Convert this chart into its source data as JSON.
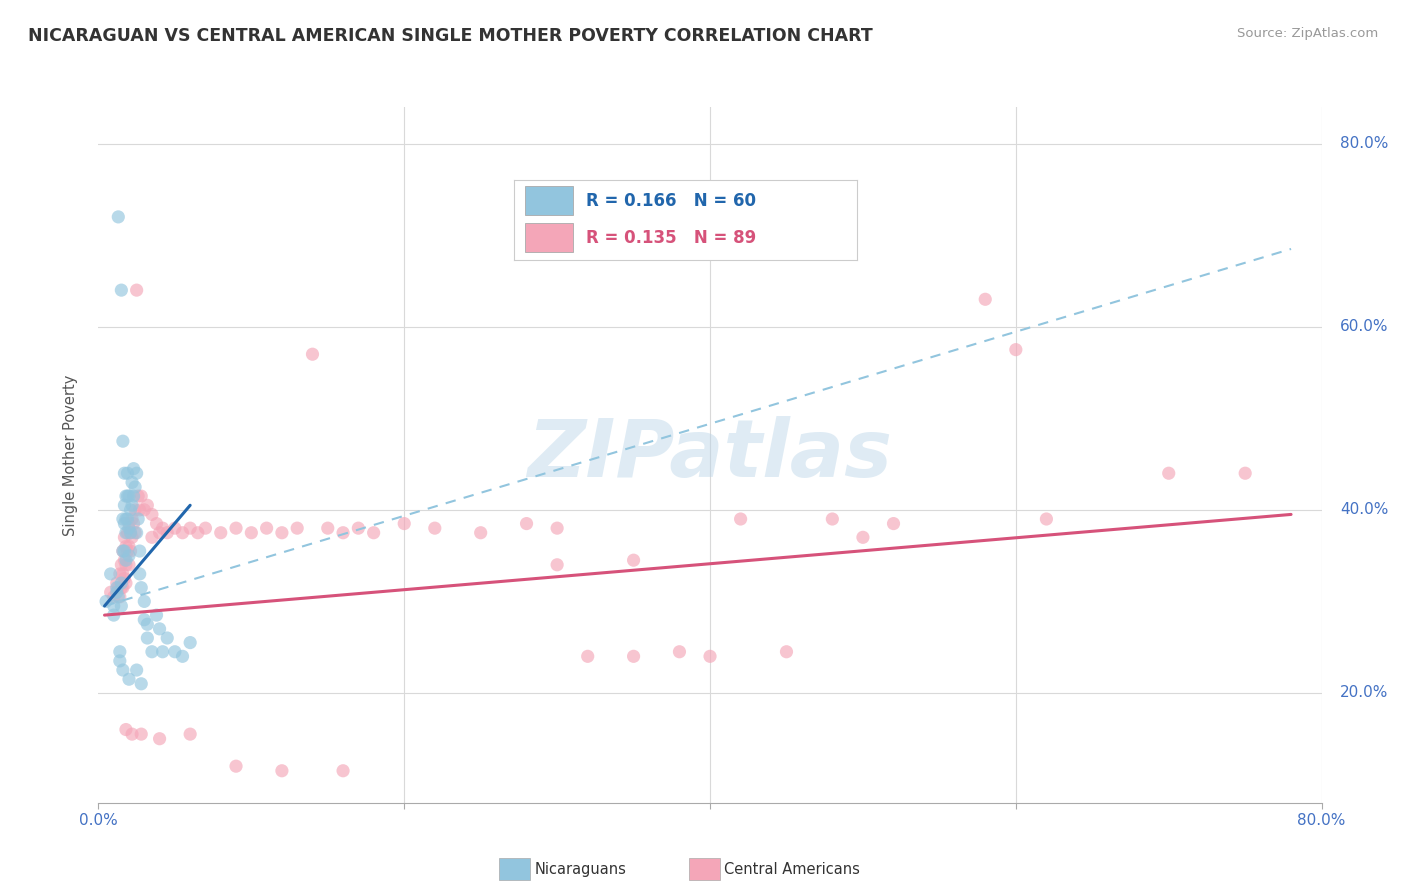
{
  "title": "NICARAGUAN VS CENTRAL AMERICAN SINGLE MOTHER POVERTY CORRELATION CHART",
  "source": "Source: ZipAtlas.com",
  "ylabel": "Single Mother Poverty",
  "watermark": "ZIPatlas",
  "xlim": [
    0.0,
    0.8
  ],
  "ylim": [
    0.08,
    0.84
  ],
  "xtick_positions": [
    0.0,
    0.2,
    0.4,
    0.6,
    0.8
  ],
  "xticklabels": [
    "0.0%",
    "",
    "",
    "",
    "80.0%"
  ],
  "ytick_positions": [
    0.2,
    0.4,
    0.6,
    0.8
  ],
  "yticklabels_right": [
    "20.0%",
    "40.0%",
    "60.0%",
    "80.0%"
  ],
  "blue_color": "#92c5de",
  "pink_color": "#f4a6b8",
  "blue_line_color": "#2166ac",
  "pink_line_color": "#d6527a",
  "dashed_line_color": "#92c5de",
  "grid_color": "#d9d9d9",
  "title_color": "#333333",
  "axis_tick_color": "#4472c4",
  "scatter_alpha": 0.65,
  "scatter_size": 90,
  "blue_scatter": [
    [
      0.005,
      0.3
    ],
    [
      0.008,
      0.33
    ],
    [
      0.01,
      0.295
    ],
    [
      0.01,
      0.285
    ],
    [
      0.012,
      0.315
    ],
    [
      0.012,
      0.31
    ],
    [
      0.013,
      0.72
    ],
    [
      0.013,
      0.305
    ],
    [
      0.015,
      0.32
    ],
    [
      0.015,
      0.64
    ],
    [
      0.015,
      0.295
    ],
    [
      0.016,
      0.475
    ],
    [
      0.016,
      0.39
    ],
    [
      0.016,
      0.355
    ],
    [
      0.017,
      0.44
    ],
    [
      0.017,
      0.405
    ],
    [
      0.017,
      0.385
    ],
    [
      0.017,
      0.355
    ],
    [
      0.018,
      0.415
    ],
    [
      0.018,
      0.39
    ],
    [
      0.018,
      0.375
    ],
    [
      0.018,
      0.345
    ],
    [
      0.019,
      0.44
    ],
    [
      0.019,
      0.415
    ],
    [
      0.019,
      0.39
    ],
    [
      0.02,
      0.415
    ],
    [
      0.02,
      0.38
    ],
    [
      0.02,
      0.35
    ],
    [
      0.021,
      0.4
    ],
    [
      0.021,
      0.375
    ],
    [
      0.022,
      0.43
    ],
    [
      0.022,
      0.405
    ],
    [
      0.023,
      0.445
    ],
    [
      0.023,
      0.415
    ],
    [
      0.024,
      0.425
    ],
    [
      0.025,
      0.44
    ],
    [
      0.025,
      0.375
    ],
    [
      0.026,
      0.39
    ],
    [
      0.027,
      0.355
    ],
    [
      0.027,
      0.33
    ],
    [
      0.028,
      0.315
    ],
    [
      0.03,
      0.3
    ],
    [
      0.03,
      0.28
    ],
    [
      0.032,
      0.275
    ],
    [
      0.032,
      0.26
    ],
    [
      0.035,
      0.245
    ],
    [
      0.038,
      0.285
    ],
    [
      0.04,
      0.27
    ],
    [
      0.042,
      0.245
    ],
    [
      0.045,
      0.26
    ],
    [
      0.05,
      0.245
    ],
    [
      0.055,
      0.24
    ],
    [
      0.06,
      0.255
    ],
    [
      0.014,
      0.245
    ],
    [
      0.014,
      0.235
    ],
    [
      0.016,
      0.225
    ],
    [
      0.02,
      0.215
    ],
    [
      0.025,
      0.225
    ],
    [
      0.028,
      0.21
    ]
  ],
  "pink_scatter": [
    [
      0.008,
      0.31
    ],
    [
      0.01,
      0.305
    ],
    [
      0.012,
      0.32
    ],
    [
      0.013,
      0.315
    ],
    [
      0.014,
      0.33
    ],
    [
      0.014,
      0.305
    ],
    [
      0.015,
      0.34
    ],
    [
      0.015,
      0.315
    ],
    [
      0.016,
      0.355
    ],
    [
      0.016,
      0.33
    ],
    [
      0.016,
      0.315
    ],
    [
      0.017,
      0.37
    ],
    [
      0.017,
      0.345
    ],
    [
      0.017,
      0.325
    ],
    [
      0.018,
      0.36
    ],
    [
      0.018,
      0.34
    ],
    [
      0.018,
      0.32
    ],
    [
      0.019,
      0.375
    ],
    [
      0.019,
      0.355
    ],
    [
      0.02,
      0.385
    ],
    [
      0.02,
      0.36
    ],
    [
      0.02,
      0.34
    ],
    [
      0.021,
      0.375
    ],
    [
      0.021,
      0.355
    ],
    [
      0.022,
      0.39
    ],
    [
      0.022,
      0.37
    ],
    [
      0.023,
      0.385
    ],
    [
      0.024,
      0.4
    ],
    [
      0.024,
      0.375
    ],
    [
      0.025,
      0.64
    ],
    [
      0.026,
      0.415
    ],
    [
      0.027,
      0.4
    ],
    [
      0.028,
      0.415
    ],
    [
      0.03,
      0.4
    ],
    [
      0.032,
      0.405
    ],
    [
      0.035,
      0.395
    ],
    [
      0.035,
      0.37
    ],
    [
      0.038,
      0.385
    ],
    [
      0.04,
      0.375
    ],
    [
      0.042,
      0.38
    ],
    [
      0.045,
      0.375
    ],
    [
      0.05,
      0.38
    ],
    [
      0.055,
      0.375
    ],
    [
      0.06,
      0.38
    ],
    [
      0.065,
      0.375
    ],
    [
      0.07,
      0.38
    ],
    [
      0.08,
      0.375
    ],
    [
      0.09,
      0.38
    ],
    [
      0.1,
      0.375
    ],
    [
      0.11,
      0.38
    ],
    [
      0.12,
      0.375
    ],
    [
      0.13,
      0.38
    ],
    [
      0.14,
      0.57
    ],
    [
      0.15,
      0.38
    ],
    [
      0.16,
      0.375
    ],
    [
      0.17,
      0.38
    ],
    [
      0.18,
      0.375
    ],
    [
      0.2,
      0.385
    ],
    [
      0.22,
      0.38
    ],
    [
      0.25,
      0.375
    ],
    [
      0.28,
      0.385
    ],
    [
      0.3,
      0.38
    ],
    [
      0.32,
      0.24
    ],
    [
      0.35,
      0.24
    ],
    [
      0.38,
      0.245
    ],
    [
      0.4,
      0.24
    ],
    [
      0.42,
      0.39
    ],
    [
      0.45,
      0.245
    ],
    [
      0.48,
      0.39
    ],
    [
      0.5,
      0.37
    ],
    [
      0.52,
      0.385
    ],
    [
      0.58,
      0.63
    ],
    [
      0.6,
      0.575
    ],
    [
      0.62,
      0.39
    ],
    [
      0.7,
      0.44
    ],
    [
      0.75,
      0.44
    ],
    [
      0.018,
      0.16
    ],
    [
      0.022,
      0.155
    ],
    [
      0.028,
      0.155
    ],
    [
      0.04,
      0.15
    ],
    [
      0.06,
      0.155
    ],
    [
      0.09,
      0.12
    ],
    [
      0.12,
      0.115
    ],
    [
      0.16,
      0.115
    ],
    [
      0.3,
      0.34
    ],
    [
      0.35,
      0.345
    ]
  ],
  "blue_line": {
    "x0": 0.004,
    "x1": 0.06,
    "y0": 0.295,
    "y1": 0.405
  },
  "pink_line": {
    "x0": 0.004,
    "x1": 0.78,
    "y0": 0.285,
    "y1": 0.395
  },
  "dashed_line": {
    "x0": 0.004,
    "x1": 0.78,
    "y0": 0.295,
    "y1": 0.685
  }
}
